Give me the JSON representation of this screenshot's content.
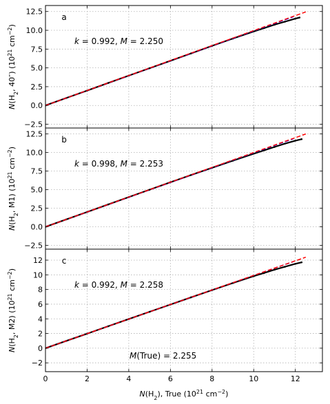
{
  "chart_data": [
    {
      "type": "scatter",
      "panel_label": "a",
      "ylabel": "N(H₂, 40″) (10²¹ cm⁻²)",
      "annotation": "k = 0.992,  M = 2.250",
      "xlim": [
        0,
        13.3
      ],
      "ylim": [
        -3.0,
        13.3
      ],
      "yticks": [
        -2.5,
        0.0,
        2.5,
        5.0,
        7.5,
        10.0,
        12.5
      ],
      "yticklabels": [
        "−2.5",
        "0.0",
        "2.5",
        "5.0",
        "7.5",
        "10.0",
        "12.5"
      ],
      "grid": true,
      "series": [
        {
          "style": "scatter",
          "color": "#000000",
          "x": [
            0,
            1,
            2,
            3,
            4,
            5,
            6,
            7,
            8,
            9,
            10,
            10.5,
            11,
            11.5,
            12,
            12.2
          ],
          "y": [
            0,
            0.99,
            1.98,
            2.98,
            3.97,
            4.96,
            5.95,
            6.94,
            7.93,
            8.9,
            9.85,
            10.3,
            10.75,
            11.15,
            11.55,
            11.7
          ]
        },
        {
          "style": "dashed",
          "color": "#0000ff",
          "x": [
            0,
            11.9
          ],
          "y": [
            0,
            11.8
          ]
        },
        {
          "style": "dashed",
          "color": "#ff0000",
          "x": [
            0,
            12.5
          ],
          "y": [
            0,
            12.45
          ]
        }
      ]
    },
    {
      "type": "scatter",
      "panel_label": "b",
      "ylabel": "N(H₂, M1) (10²¹ cm⁻²)",
      "annotation": "k = 0.998,  M = 2.253",
      "xlim": [
        0,
        13.3
      ],
      "ylim": [
        -3.0,
        13.3
      ],
      "yticks": [
        -2.5,
        0.0,
        2.5,
        5.0,
        7.5,
        10.0,
        12.5
      ],
      "yticklabels": [
        "−2.5",
        "0.0",
        "2.5",
        "5.0",
        "7.5",
        "10.0",
        "12.5"
      ],
      "grid": true,
      "series": [
        {
          "style": "scatter",
          "color": "#000000",
          "x": [
            0,
            1,
            2,
            3,
            4,
            5,
            6,
            7,
            8,
            9,
            10,
            10.5,
            11,
            11.5,
            12,
            12.3
          ],
          "y": [
            0,
            1.0,
            2.0,
            3.0,
            4.0,
            5.0,
            6.0,
            6.98,
            7.95,
            8.9,
            9.85,
            10.3,
            10.75,
            11.2,
            11.6,
            11.8
          ]
        },
        {
          "style": "dashed",
          "color": "#0000ff",
          "x": [
            0,
            11.9
          ],
          "y": [
            0,
            11.85
          ]
        },
        {
          "style": "dashed",
          "color": "#ff0000",
          "x": [
            0,
            12.5
          ],
          "y": [
            0,
            12.5
          ]
        }
      ]
    },
    {
      "type": "scatter",
      "panel_label": "c",
      "ylabel": "N(H₂, M2) (10²¹ cm⁻²)",
      "annotation": "k = 0.992,  M = 2.258",
      "annotation2": "M(True) = 2.255",
      "xlabel": "N(H₂), True (10²¹ cm⁻²)",
      "xlim": [
        0,
        13.3
      ],
      "ylim": [
        -3.2,
        13.5
      ],
      "xticks": [
        0,
        2,
        4,
        6,
        8,
        10,
        12
      ],
      "xticklabels": [
        "0",
        "2",
        "4",
        "6",
        "8",
        "10",
        "12"
      ],
      "yticks": [
        -2,
        0,
        2,
        4,
        6,
        8,
        10,
        12
      ],
      "yticklabels": [
        "−2",
        "0",
        "2",
        "4",
        "6",
        "8",
        "10",
        "12"
      ],
      "grid": true,
      "series": [
        {
          "style": "scatter",
          "color": "#000000",
          "x": [
            0,
            1,
            2,
            3,
            4,
            5,
            6,
            7,
            8,
            9,
            10,
            10.5,
            11,
            11.5,
            12,
            12.3
          ],
          "y": [
            0,
            0.99,
            1.98,
            2.98,
            3.97,
            4.96,
            5.95,
            6.94,
            7.92,
            8.88,
            9.82,
            10.25,
            10.7,
            11.1,
            11.5,
            11.7
          ]
        },
        {
          "style": "dashed",
          "color": "#0000ff",
          "x": [
            0,
            11.9
          ],
          "y": [
            0,
            11.8
          ]
        },
        {
          "style": "dashed",
          "color": "#ff0000",
          "x": [
            0,
            12.5
          ],
          "y": [
            0,
            12.4
          ]
        }
      ]
    }
  ]
}
